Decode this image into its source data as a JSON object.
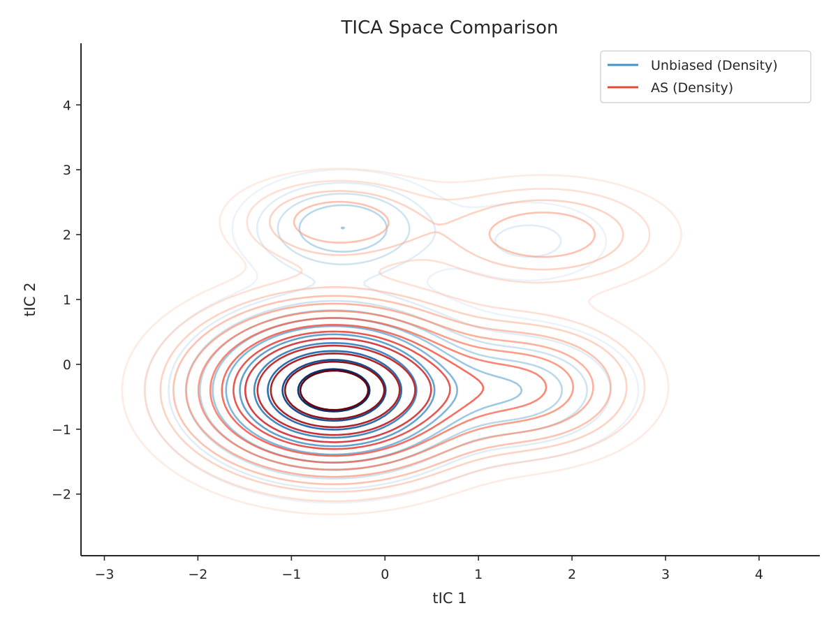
{
  "chart_data": {
    "type": "contour",
    "title": "TICA Space Comparison",
    "xlabel": "tIC 1",
    "ylabel": "tIC 2",
    "xlim": [
      -3.25,
      4.65
    ],
    "ylim": [
      -2.95,
      4.95
    ],
    "xticks": [
      -3,
      -2,
      -1,
      0,
      1,
      2,
      3,
      4
    ],
    "xtick_labels": [
      "−3",
      "−2",
      "−1",
      "0",
      "1",
      "2",
      "3",
      "4"
    ],
    "yticks": [
      -2,
      -1,
      0,
      1,
      2,
      3,
      4
    ],
    "ytick_labels": [
      "−2",
      "−1",
      "0",
      "1",
      "2",
      "3",
      "4"
    ],
    "grid": false,
    "legend_position": "top-right",
    "series": [
      {
        "name": "Unbiased (Density)",
        "color": "#4292c6",
        "colormap": "Blues",
        "components": [
          {
            "weight": 1.0,
            "mean": [
              -0.55,
              -0.4
            ],
            "sd": [
              0.72,
              0.62
            ]
          },
          {
            "weight": 0.2,
            "mean": [
              -0.45,
              2.1
            ],
            "sd": [
              0.55,
              0.42
            ]
          },
          {
            "weight": 0.18,
            "mean": [
              1.45,
              -0.4
            ],
            "sd": [
              0.6,
              0.5
            ]
          },
          {
            "weight": 0.06,
            "mean": [
              1.55,
              1.9
            ],
            "sd": [
              0.55,
              0.4
            ]
          }
        ],
        "levels": [
          0.02,
          0.05,
          0.09,
          0.14,
          0.2,
          0.28,
          0.38,
          0.5,
          0.62,
          0.75,
          0.87
        ]
      },
      {
        "name": "AS (Density)",
        "color": "#e34a33",
        "colormap": "Reds",
        "components": [
          {
            "weight": 1.0,
            "mean": [
              -0.55,
              -0.4
            ],
            "sd": [
              0.78,
              0.66
            ]
          },
          {
            "weight": 0.12,
            "mean": [
              -0.5,
              2.2
            ],
            "sd": [
              0.62,
              0.4
            ]
          },
          {
            "weight": 0.24,
            "mean": [
              1.5,
              -0.35
            ],
            "sd": [
              0.65,
              0.55
            ]
          },
          {
            "weight": 0.12,
            "mean": [
              1.7,
              2.0
            ],
            "sd": [
              0.72,
              0.45
            ]
          }
        ],
        "levels": [
          0.015,
          0.035,
          0.06,
          0.09,
          0.13,
          0.18,
          0.24,
          0.31,
          0.39,
          0.48,
          0.58,
          0.69,
          0.8,
          0.9
        ]
      }
    ]
  }
}
